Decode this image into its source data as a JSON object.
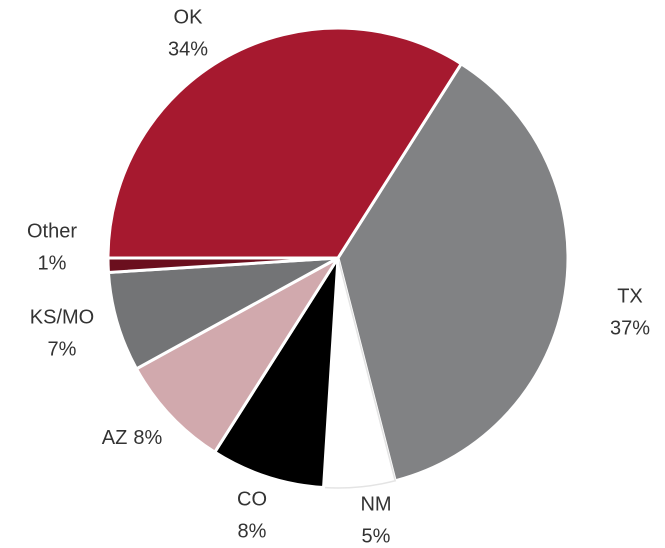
{
  "chart_data": {
    "type": "pie",
    "categories": [
      "TX",
      "NM",
      "CO",
      "AZ",
      "KS/MO",
      "Other",
      "OK"
    ],
    "values": [
      37,
      5,
      8,
      8,
      7,
      1,
      34
    ],
    "value_labels": [
      "37%",
      "5%",
      "8%",
      "8%",
      "7%",
      "1%",
      "34%"
    ],
    "colors": [
      "#818284",
      "#ffffff",
      "#000000",
      "#d1a9ad",
      "#737476",
      "#6b0f1e",
      "#a6192f"
    ]
  }
}
